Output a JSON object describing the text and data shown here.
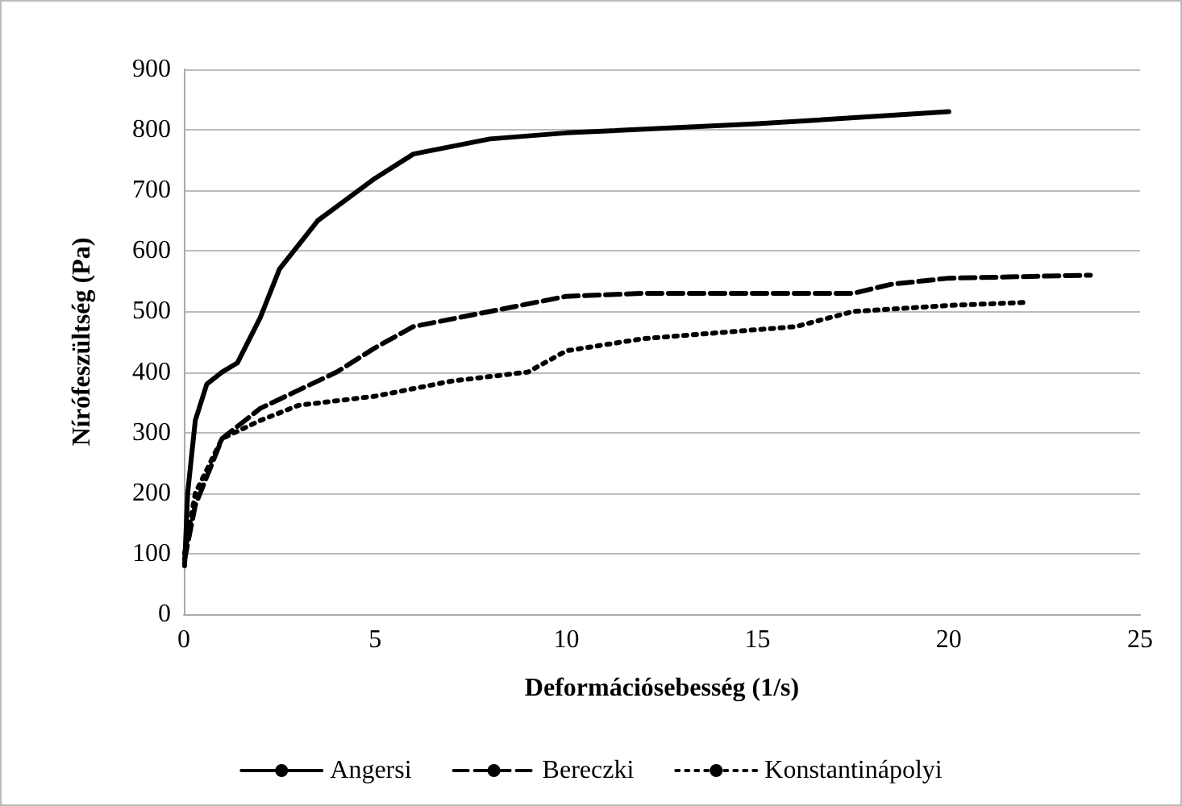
{
  "chart_data": {
    "type": "line",
    "xlabel": "Deformációsebesség (1/s)",
    "ylabel": "Nírófeszültség (Pa)",
    "xlim": [
      0,
      25
    ],
    "xticks": [
      0,
      5,
      10,
      15,
      20,
      25
    ],
    "ylim": [
      0,
      900
    ],
    "yticks": [
      0,
      100,
      200,
      300,
      400,
      500,
      600,
      700,
      800,
      900
    ],
    "grid": "y",
    "legend": "bottom",
    "marker": "none",
    "series": [
      {
        "name": "Angersi",
        "color": "#000000",
        "line_style": "solid",
        "x": [
          0.02,
          0.1,
          0.3,
          0.6,
          1,
          1.4,
          2,
          2.5,
          3.5,
          5,
          6,
          8,
          10,
          15,
          20
        ],
        "values": [
          80,
          200,
          320,
          380,
          400,
          415,
          490,
          570,
          650,
          720,
          760,
          785,
          795,
          810,
          830
        ]
      },
      {
        "name": "Bereczki",
        "color": "#000000",
        "line_style": "dashed",
        "x": [
          0.02,
          0.3,
          1,
          2,
          3,
          4,
          5,
          6,
          8,
          10,
          12,
          15,
          17.5,
          18.5,
          20,
          23.7
        ],
        "values": [
          90,
          180,
          290,
          340,
          370,
          400,
          440,
          475,
          500,
          525,
          530,
          530,
          530,
          545,
          555,
          560
        ]
      },
      {
        "name": "Konstantinápolyi",
        "color": "#000000",
        "line_style": "dotted",
        "x": [
          0.02,
          0.3,
          1,
          2,
          3,
          5,
          7,
          9,
          10,
          12,
          14,
          16,
          17.5,
          20,
          22
        ],
        "values": [
          100,
          200,
          290,
          320,
          345,
          360,
          385,
          400,
          435,
          455,
          465,
          475,
          500,
          510,
          515
        ]
      }
    ]
  }
}
